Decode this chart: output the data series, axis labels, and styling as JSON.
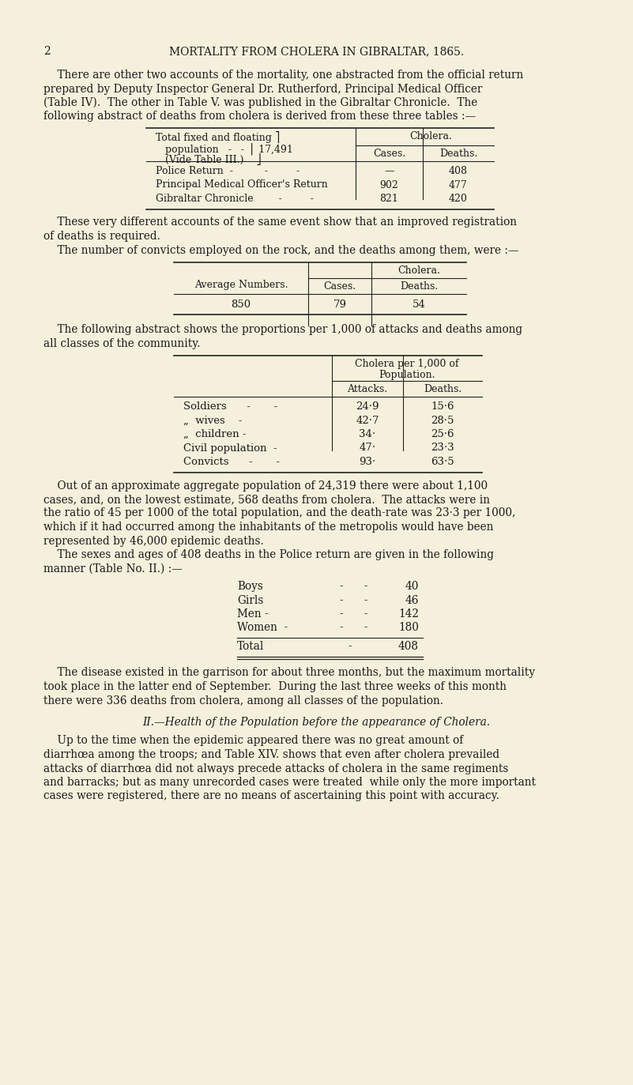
{
  "page_number": "2",
  "page_title": "MORTALITY FROM CHOLERA IN GIBRALTAR, 1865.",
  "bg_color": "#f5f0dc",
  "text_color": "#1a1a1a",
  "para1_lines": [
    "    There are other two accounts of the mortality, one abstracted from the official return",
    "prepared by Deputy Inspector General Dr. Rutherford, Principal Medical Officer",
    "(Table IV).  The other in Table V. was published in the Gibraltar Chronicle.  The",
    "following abstract of deaths from cholera is derived from these three tables :—"
  ],
  "table1_left_line1": "Total fixed and floating ⎤",
  "table1_left_line2": "   population   -   -  ⎢ 17,491",
  "table1_left_line3": "   (Vide Table III.)    ⎦",
  "table1_col_header": "Cholera.",
  "table1_sub_cols": [
    "Cases.",
    "Deaths."
  ],
  "table1_rows": [
    [
      "Police Return  -          -         -",
      "—",
      "408"
    ],
    [
      "Principal Medical Officer's Return",
      "902",
      "477"
    ],
    [
      "Gibraltar Chronicle        -         -",
      "821",
      "420"
    ]
  ],
  "para2_lines": [
    "    These very different accounts of the same event show that an improved registration",
    "of deaths is required."
  ],
  "para3": "    The number of convicts employed on the rock, and the deaths among them, were :—",
  "table2_left": "Average Numbers.",
  "table2_col_header": "Cholera.",
  "table2_sub_cols": [
    "Cases.",
    "Deaths."
  ],
  "table2_row": [
    "850",
    "79",
    "54"
  ],
  "para4_lines": [
    "    The following abstract shows the proportions per 1,000 of attacks and deaths among",
    "all classes of the community."
  ],
  "table3_col_header1": "Cholera per 1,000 of",
  "table3_col_header2": "Population.",
  "table3_sub_cols": [
    "Attacks.",
    "Deaths."
  ],
  "table3_rows": [
    [
      "Soldiers      -       -",
      "24·9",
      "15·6"
    ],
    [
      "„  wives    -",
      "42·7",
      "28·5"
    ],
    [
      "„  children -",
      "34·",
      "25·6"
    ],
    [
      "Civil population  -",
      "47·",
      "23·3"
    ],
    [
      "Convicts      -       -",
      "93·",
      "63·5"
    ]
  ],
  "para5_lines": [
    "    Out of an approximate aggregate population of 24,319 there were about 1,100",
    "cases, and, on the lowest estimate, 568 deaths from cholera.  The attacks were in",
    "the ratio of 45 per 1000 of the total population, and the death-rate was 23·3 per 1000,",
    "which if it had occurred among the inhabitants of the metropolis would have been",
    "represented by 46,000 epidemic deaths."
  ],
  "para6_lines": [
    "    The sexes and ages of 408 deaths in the Police return are given in the following",
    "manner (Table No. II.) :—"
  ],
  "table4_rows": [
    [
      "Boys",
      "-      -",
      "40"
    ],
    [
      "Girls",
      "-      -",
      "46"
    ],
    [
      "Men -",
      "-      -",
      "142"
    ],
    [
      "Women  -",
      "-      -",
      "180"
    ]
  ],
  "table4_total": [
    "Total",
    "-",
    "408"
  ],
  "para7_lines": [
    "    The disease existed in the garrison for about three months, but the maximum mortality",
    "took place in the latter end of September.  During the last three weeks of this month",
    "there were 336 deaths from cholera, among all classes of the population."
  ],
  "section_header": "II.—Health of the Population before the appearance of Cholera.",
  "para8_lines": [
    "    Up to the time when the epidemic appeared there was no great amount of",
    "diarrhœa among the troops; and Table XIV. shows that even after cholera prevailed",
    "attacks of diarrhœa did not always precede attacks of cholera in the same regiments",
    "and barracks; but as many unrecorded cases were treated  while only the more important",
    "cases were registered, there are no means of ascertaining this point with accuracy."
  ]
}
